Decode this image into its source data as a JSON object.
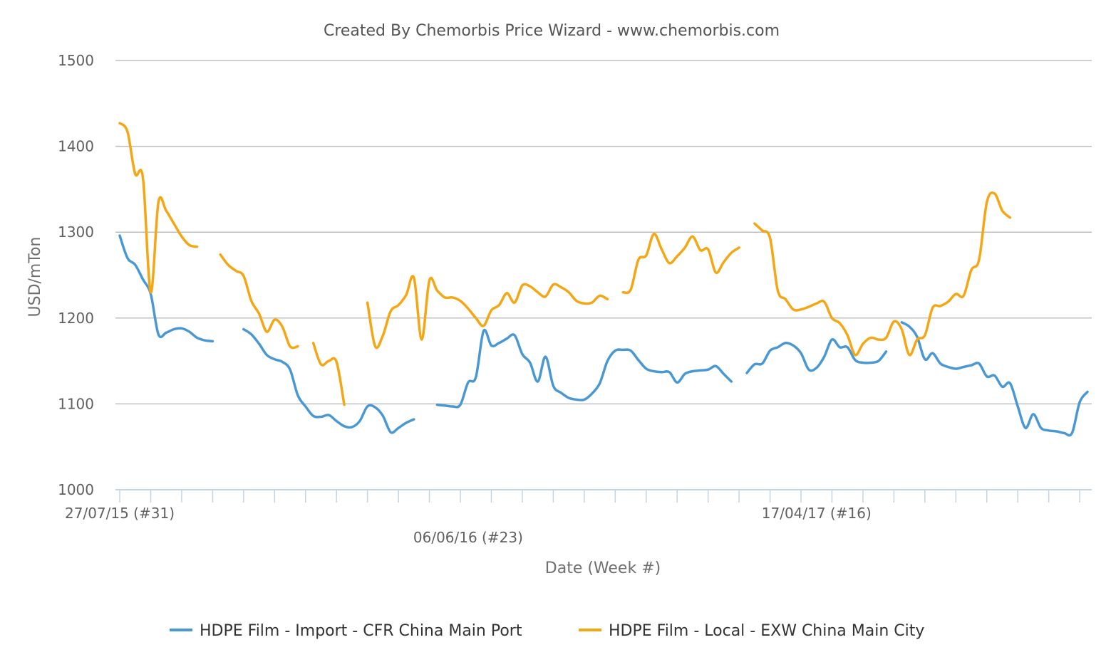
{
  "chart_data": {
    "type": "line",
    "title": "Created By Chemorbis Price Wizard - www.chemorbis.com",
    "xlabel": "Date (Week #)",
    "ylabel": "USD/mTon",
    "ylim": [
      1000,
      1500
    ],
    "yticks": [
      "1000",
      "1100",
      "1200",
      "1300",
      "1400",
      "1500"
    ],
    "xtick_labels": [
      {
        "label": "27/07/15 (#31)",
        "x": "2015-07-27"
      },
      {
        "label": "06/06/16 (#23)",
        "x": "2016-06-06"
      },
      {
        "label": "17/04/17 (#16)",
        "x": "2017-04-17"
      }
    ],
    "xlim": [
      "2015-07-27",
      "2017-12-18"
    ],
    "grid": "horizontal",
    "legend_position": "bottom",
    "series": [
      {
        "name": "HDPE Film - Import - CFR China Main Port",
        "color": "#4a98d3",
        "segments": [
          [
            [
              "2015-07-27",
              1296
            ],
            [
              "2015-08-03",
              1270
            ],
            [
              "2015-08-10",
              1262
            ],
            [
              "2015-08-17",
              1245
            ],
            [
              "2015-08-24",
              1228
            ],
            [
              "2015-08-31",
              1181
            ],
            [
              "2015-09-07",
              1183
            ],
            [
              "2015-09-14",
              1187
            ],
            [
              "2015-09-21",
              1188
            ],
            [
              "2015-09-28",
              1184
            ],
            [
              "2015-10-05",
              1177
            ],
            [
              "2015-10-12",
              1174
            ],
            [
              "2015-10-19",
              1173
            ]
          ],
          [
            [
              "2015-11-16",
              1187
            ],
            [
              "2015-11-23",
              1181
            ],
            [
              "2015-11-30",
              1170
            ],
            [
              "2015-12-07",
              1157
            ],
            [
              "2015-12-14",
              1152
            ],
            [
              "2015-12-21",
              1149
            ],
            [
              "2015-12-28",
              1140
            ],
            [
              "2016-01-04",
              1110
            ],
            [
              "2016-01-11",
              1097
            ],
            [
              "2016-01-18",
              1086
            ],
            [
              "2016-01-25",
              1085
            ],
            [
              "2016-02-01",
              1087
            ],
            [
              "2016-02-08",
              1080
            ],
            [
              "2016-02-15",
              1074
            ],
            [
              "2016-02-22",
              1073
            ],
            [
              "2016-02-29",
              1080
            ],
            [
              "2016-03-07",
              1097
            ],
            [
              "2016-03-14",
              1096
            ],
            [
              "2016-03-21",
              1086
            ],
            [
              "2016-03-28",
              1067
            ],
            [
              "2016-04-04",
              1072
            ],
            [
              "2016-04-11",
              1078
            ],
            [
              "2016-04-18",
              1082
            ]
          ],
          [
            [
              "2016-05-09",
              1099
            ],
            [
              "2016-05-16",
              1098
            ],
            [
              "2016-05-23",
              1097
            ],
            [
              "2016-05-30",
              1099
            ],
            [
              "2016-06-06",
              1125
            ],
            [
              "2016-06-13",
              1131
            ],
            [
              "2016-06-20",
              1185
            ],
            [
              "2016-06-27",
              1168
            ],
            [
              "2016-07-04",
              1171
            ],
            [
              "2016-07-11",
              1176
            ],
            [
              "2016-07-18",
              1180
            ],
            [
              "2016-07-25",
              1158
            ],
            [
              "2016-08-01",
              1148
            ],
            [
              "2016-08-08",
              1126
            ],
            [
              "2016-08-15",
              1155
            ],
            [
              "2016-08-22",
              1121
            ],
            [
              "2016-08-29",
              1113
            ],
            [
              "2016-09-05",
              1107
            ],
            [
              "2016-09-12",
              1105
            ],
            [
              "2016-09-19",
              1105
            ],
            [
              "2016-09-26",
              1112
            ],
            [
              "2016-10-03",
              1124
            ],
            [
              "2016-10-10",
              1150
            ],
            [
              "2016-10-17",
              1162
            ],
            [
              "2016-10-24",
              1163
            ],
            [
              "2016-10-31",
              1162
            ],
            [
              "2016-11-07",
              1151
            ],
            [
              "2016-11-14",
              1141
            ],
            [
              "2016-11-21",
              1138
            ],
            [
              "2016-11-28",
              1137
            ],
            [
              "2016-12-05",
              1137
            ],
            [
              "2016-12-12",
              1125
            ],
            [
              "2016-12-19",
              1135
            ],
            [
              "2016-12-26",
              1138
            ],
            [
              "2017-01-02",
              1139
            ],
            [
              "2017-01-09",
              1140
            ],
            [
              "2017-01-16",
              1144
            ],
            [
              "2017-01-23",
              1135
            ],
            [
              "2017-01-30",
              1126
            ]
          ],
          [
            [
              "2017-02-13",
              1136
            ],
            [
              "2017-02-20",
              1146
            ],
            [
              "2017-02-27",
              1147
            ],
            [
              "2017-03-06",
              1162
            ],
            [
              "2017-03-13",
              1166
            ],
            [
              "2017-03-20",
              1171
            ],
            [
              "2017-03-27",
              1168
            ],
            [
              "2017-04-03",
              1159
            ],
            [
              "2017-04-10",
              1140
            ],
            [
              "2017-04-17",
              1142
            ],
            [
              "2017-04-24",
              1155
            ],
            [
              "2017-05-01",
              1175
            ],
            [
              "2017-05-08",
              1166
            ],
            [
              "2017-05-15",
              1166
            ],
            [
              "2017-05-22",
              1151
            ],
            [
              "2017-05-29",
              1148
            ],
            [
              "2017-06-05",
              1148
            ],
            [
              "2017-06-12",
              1150
            ],
            [
              "2017-06-19",
              1161
            ]
          ],
          [
            [
              "2017-07-03",
              1195
            ],
            [
              "2017-07-10",
              1190
            ],
            [
              "2017-07-17",
              1178
            ],
            [
              "2017-07-24",
              1152
            ],
            [
              "2017-07-31",
              1159
            ],
            [
              "2017-08-07",
              1147
            ],
            [
              "2017-08-14",
              1143
            ],
            [
              "2017-08-21",
              1141
            ],
            [
              "2017-08-28",
              1143
            ],
            [
              "2017-09-04",
              1145
            ],
            [
              "2017-09-11",
              1147
            ],
            [
              "2017-09-18",
              1132
            ],
            [
              "2017-09-25",
              1133
            ],
            [
              "2017-10-02",
              1120
            ],
            [
              "2017-10-09",
              1124
            ],
            [
              "2017-10-16",
              1097
            ],
            [
              "2017-10-23",
              1072
            ],
            [
              "2017-10-30",
              1088
            ],
            [
              "2017-11-06",
              1072
            ],
            [
              "2017-11-13",
              1069
            ],
            [
              "2017-11-20",
              1068
            ],
            [
              "2017-11-27",
              1066
            ],
            [
              "2017-12-04",
              1066
            ],
            [
              "2017-12-11",
              1102
            ],
            [
              "2017-12-18",
              1114
            ]
          ]
        ]
      },
      {
        "name": "HDPE Film - Local - EXW China Main City",
        "color": "#f5a614",
        "segments": [
          [
            [
              "2015-07-27",
              1427
            ],
            [
              "2015-08-03",
              1417
            ],
            [
              "2015-08-10",
              1368
            ],
            [
              "2015-08-17",
              1363
            ],
            [
              "2015-08-24",
              1230
            ],
            [
              "2015-08-31",
              1335
            ],
            [
              "2015-09-07",
              1325
            ],
            [
              "2015-09-14",
              1310
            ],
            [
              "2015-09-21",
              1295
            ],
            [
              "2015-09-28",
              1285
            ],
            [
              "2015-10-05",
              1283
            ]
          ],
          [
            [
              "2015-10-26",
              1274
            ],
            [
              "2015-11-02",
              1262
            ],
            [
              "2015-11-09",
              1255
            ],
            [
              "2015-11-16",
              1249
            ],
            [
              "2015-11-23",
              1220
            ],
            [
              "2015-11-30",
              1205
            ],
            [
              "2015-12-07",
              1184
            ],
            [
              "2015-12-14",
              1198
            ],
            [
              "2015-12-21",
              1190
            ],
            [
              "2015-12-28",
              1167
            ],
            [
              "2016-01-04",
              1167
            ]
          ],
          [
            [
              "2016-01-18",
              1171
            ],
            [
              "2016-01-25",
              1146
            ],
            [
              "2016-02-01",
              1150
            ],
            [
              "2016-02-08",
              1149
            ],
            [
              "2016-02-15",
              1099
            ]
          ],
          [
            [
              "2016-03-07",
              1218
            ],
            [
              "2016-03-14",
              1167
            ],
            [
              "2016-03-21",
              1180
            ],
            [
              "2016-03-28",
              1208
            ],
            [
              "2016-04-04",
              1215
            ],
            [
              "2016-04-11",
              1227
            ],
            [
              "2016-04-18",
              1247
            ],
            [
              "2016-04-25",
              1175
            ],
            [
              "2016-05-02",
              1244
            ],
            [
              "2016-05-09",
              1232
            ],
            [
              "2016-05-16",
              1224
            ],
            [
              "2016-05-23",
              1224
            ],
            [
              "2016-05-30",
              1220
            ],
            [
              "2016-06-06",
              1211
            ],
            [
              "2016-06-13",
              1200
            ],
            [
              "2016-06-20",
              1191
            ],
            [
              "2016-06-27",
              1209
            ],
            [
              "2016-07-04",
              1215
            ],
            [
              "2016-07-11",
              1229
            ],
            [
              "2016-07-18",
              1218
            ],
            [
              "2016-07-25",
              1238
            ],
            [
              "2016-08-01",
              1237
            ],
            [
              "2016-08-08",
              1230
            ],
            [
              "2016-08-15",
              1225
            ],
            [
              "2016-08-22",
              1239
            ],
            [
              "2016-08-29",
              1236
            ],
            [
              "2016-09-05",
              1230
            ],
            [
              "2016-09-12",
              1220
            ],
            [
              "2016-09-19",
              1217
            ],
            [
              "2016-09-26",
              1218
            ],
            [
              "2016-10-03",
              1226
            ],
            [
              "2016-10-10",
              1222
            ]
          ],
          [
            [
              "2016-10-24",
              1230
            ],
            [
              "2016-10-31",
              1233
            ],
            [
              "2016-11-07",
              1268
            ],
            [
              "2016-11-14",
              1273
            ],
            [
              "2016-11-21",
              1298
            ],
            [
              "2016-11-28",
              1280
            ],
            [
              "2016-12-05",
              1264
            ],
            [
              "2016-12-12",
              1272
            ],
            [
              "2016-12-19",
              1282
            ],
            [
              "2016-12-26",
              1295
            ],
            [
              "2017-01-02",
              1279
            ],
            [
              "2017-01-09",
              1280
            ],
            [
              "2017-01-16",
              1253
            ],
            [
              "2017-01-23",
              1265
            ],
            [
              "2017-01-30",
              1276
            ],
            [
              "2017-02-06",
              1282
            ]
          ],
          [
            [
              "2017-02-20",
              1310
            ],
            [
              "2017-02-27",
              1302
            ],
            [
              "2017-03-06",
              1293
            ],
            [
              "2017-03-13",
              1232
            ],
            [
              "2017-03-20",
              1222
            ],
            [
              "2017-03-27",
              1210
            ],
            [
              "2017-04-03",
              1210
            ],
            [
              "2017-04-10",
              1213
            ],
            [
              "2017-04-17",
              1217
            ],
            [
              "2017-04-24",
              1219
            ],
            [
              "2017-05-01",
              1200
            ],
            [
              "2017-05-08",
              1194
            ],
            [
              "2017-05-15",
              1180
            ],
            [
              "2017-05-22",
              1157
            ],
            [
              "2017-05-29",
              1170
            ],
            [
              "2017-06-05",
              1177
            ],
            [
              "2017-06-12",
              1175
            ],
            [
              "2017-06-19",
              1177
            ],
            [
              "2017-06-26",
              1196
            ],
            [
              "2017-07-03",
              1187
            ],
            [
              "2017-07-10",
              1157
            ],
            [
              "2017-07-17",
              1175
            ],
            [
              "2017-07-24",
              1180
            ],
            [
              "2017-07-31",
              1212
            ],
            [
              "2017-08-07",
              1214
            ],
            [
              "2017-08-14",
              1219
            ],
            [
              "2017-08-21",
              1228
            ],
            [
              "2017-08-28",
              1226
            ],
            [
              "2017-09-04",
              1256
            ],
            [
              "2017-09-11",
              1268
            ],
            [
              "2017-09-18",
              1335
            ],
            [
              "2017-09-25",
              1345
            ],
            [
              "2017-10-02",
              1325
            ],
            [
              "2017-10-09",
              1317
            ]
          ]
        ]
      }
    ]
  }
}
